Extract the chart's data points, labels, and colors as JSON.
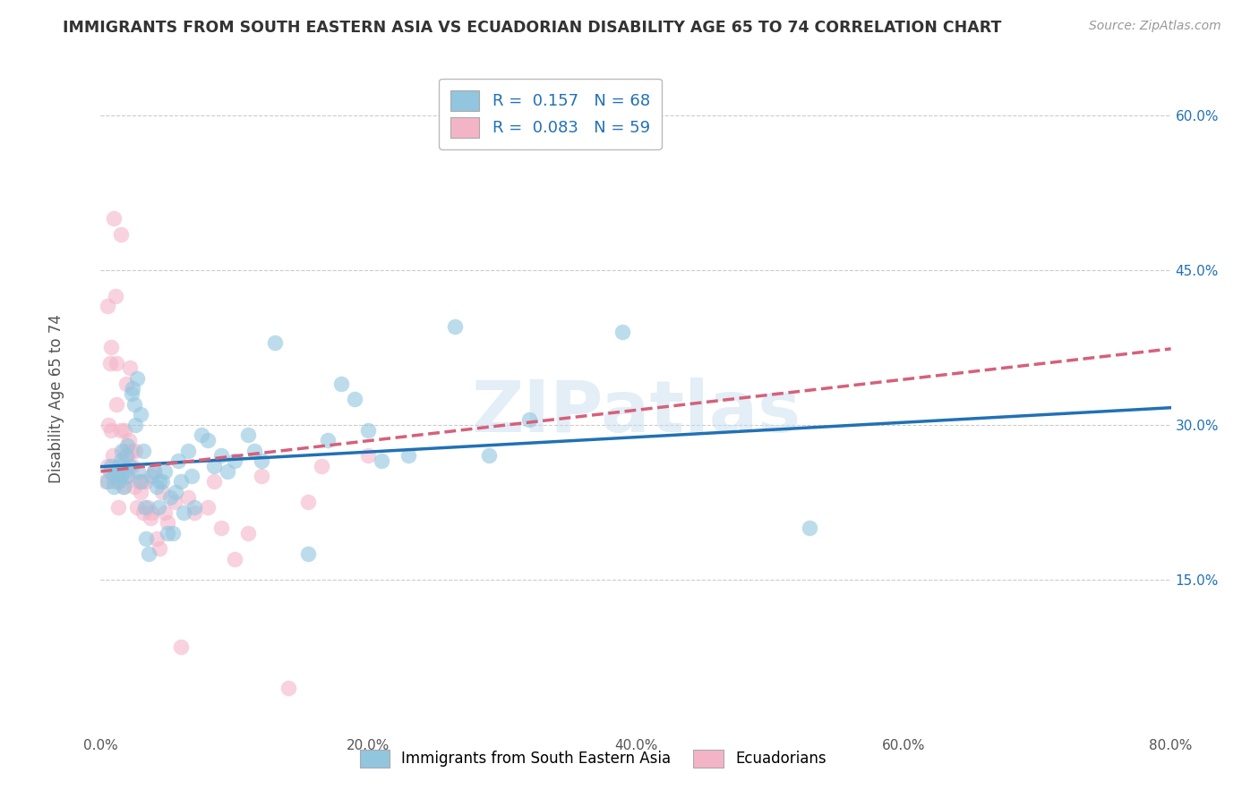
{
  "title": "IMMIGRANTS FROM SOUTH EASTERN ASIA VS ECUADORIAN DISABILITY AGE 65 TO 74 CORRELATION CHART",
  "source": "Source: ZipAtlas.com",
  "ylabel": "Disability Age 65 to 74",
  "watermark": "ZIPatlas",
  "xlim": [
    0.0,
    0.8
  ],
  "ylim": [
    0.0,
    0.65
  ],
  "xticks": [
    0.0,
    0.2,
    0.4,
    0.6,
    0.8
  ],
  "xtick_labels": [
    "0.0%",
    "20.0%",
    "40.0%",
    "60.0%",
    "80.0%"
  ],
  "yticks": [
    0.15,
    0.3,
    0.45,
    0.6
  ],
  "ytick_labels": [
    "15.0%",
    "30.0%",
    "45.0%",
    "60.0%"
  ],
  "R_blue": 0.157,
  "N_blue": 68,
  "R_pink": 0.083,
  "N_pink": 59,
  "blue_color": "#92c5de",
  "pink_color": "#f4b4c8",
  "blue_scatter": [
    [
      0.005,
      0.245
    ],
    [
      0.007,
      0.255
    ],
    [
      0.008,
      0.26
    ],
    [
      0.01,
      0.24
    ],
    [
      0.01,
      0.25
    ],
    [
      0.012,
      0.255
    ],
    [
      0.013,
      0.245
    ],
    [
      0.014,
      0.26
    ],
    [
      0.015,
      0.25
    ],
    [
      0.015,
      0.265
    ],
    [
      0.016,
      0.275
    ],
    [
      0.017,
      0.24
    ],
    [
      0.018,
      0.255
    ],
    [
      0.019,
      0.27
    ],
    [
      0.02,
      0.28
    ],
    [
      0.02,
      0.25
    ],
    [
      0.022,
      0.26
    ],
    [
      0.023,
      0.33
    ],
    [
      0.024,
      0.335
    ],
    [
      0.025,
      0.32
    ],
    [
      0.026,
      0.3
    ],
    [
      0.027,
      0.345
    ],
    [
      0.028,
      0.255
    ],
    [
      0.03,
      0.31
    ],
    [
      0.03,
      0.245
    ],
    [
      0.032,
      0.275
    ],
    [
      0.033,
      0.22
    ],
    [
      0.034,
      0.19
    ],
    [
      0.036,
      0.175
    ],
    [
      0.038,
      0.25
    ],
    [
      0.04,
      0.255
    ],
    [
      0.042,
      0.24
    ],
    [
      0.043,
      0.22
    ],
    [
      0.044,
      0.245
    ],
    [
      0.046,
      0.245
    ],
    [
      0.048,
      0.255
    ],
    [
      0.05,
      0.195
    ],
    [
      0.052,
      0.23
    ],
    [
      0.054,
      0.195
    ],
    [
      0.056,
      0.235
    ],
    [
      0.058,
      0.265
    ],
    [
      0.06,
      0.245
    ],
    [
      0.062,
      0.215
    ],
    [
      0.065,
      0.275
    ],
    [
      0.068,
      0.25
    ],
    [
      0.07,
      0.22
    ],
    [
      0.075,
      0.29
    ],
    [
      0.08,
      0.285
    ],
    [
      0.085,
      0.26
    ],
    [
      0.09,
      0.27
    ],
    [
      0.095,
      0.255
    ],
    [
      0.1,
      0.265
    ],
    [
      0.11,
      0.29
    ],
    [
      0.115,
      0.275
    ],
    [
      0.12,
      0.265
    ],
    [
      0.13,
      0.38
    ],
    [
      0.155,
      0.175
    ],
    [
      0.17,
      0.285
    ],
    [
      0.18,
      0.34
    ],
    [
      0.19,
      0.325
    ],
    [
      0.2,
      0.295
    ],
    [
      0.21,
      0.265
    ],
    [
      0.23,
      0.27
    ],
    [
      0.265,
      0.395
    ],
    [
      0.29,
      0.27
    ],
    [
      0.32,
      0.305
    ],
    [
      0.39,
      0.39
    ],
    [
      0.53,
      0.2
    ]
  ],
  "pink_scatter": [
    [
      0.004,
      0.245
    ],
    [
      0.005,
      0.26
    ],
    [
      0.005,
      0.415
    ],
    [
      0.006,
      0.3
    ],
    [
      0.007,
      0.36
    ],
    [
      0.008,
      0.295
    ],
    [
      0.008,
      0.375
    ],
    [
      0.009,
      0.27
    ],
    [
      0.01,
      0.5
    ],
    [
      0.01,
      0.245
    ],
    [
      0.011,
      0.425
    ],
    [
      0.012,
      0.32
    ],
    [
      0.012,
      0.36
    ],
    [
      0.013,
      0.22
    ],
    [
      0.014,
      0.245
    ],
    [
      0.015,
      0.295
    ],
    [
      0.015,
      0.485
    ],
    [
      0.016,
      0.26
    ],
    [
      0.017,
      0.24
    ],
    [
      0.018,
      0.295
    ],
    [
      0.018,
      0.275
    ],
    [
      0.019,
      0.34
    ],
    [
      0.02,
      0.27
    ],
    [
      0.02,
      0.25
    ],
    [
      0.021,
      0.285
    ],
    [
      0.022,
      0.355
    ],
    [
      0.023,
      0.275
    ],
    [
      0.024,
      0.26
    ],
    [
      0.025,
      0.24
    ],
    [
      0.026,
      0.275
    ],
    [
      0.027,
      0.22
    ],
    [
      0.028,
      0.245
    ],
    [
      0.03,
      0.235
    ],
    [
      0.031,
      0.245
    ],
    [
      0.032,
      0.215
    ],
    [
      0.034,
      0.245
    ],
    [
      0.035,
      0.22
    ],
    [
      0.037,
      0.21
    ],
    [
      0.038,
      0.215
    ],
    [
      0.04,
      0.255
    ],
    [
      0.042,
      0.19
    ],
    [
      0.044,
      0.18
    ],
    [
      0.046,
      0.235
    ],
    [
      0.048,
      0.215
    ],
    [
      0.05,
      0.205
    ],
    [
      0.055,
      0.225
    ],
    [
      0.06,
      0.085
    ],
    [
      0.065,
      0.23
    ],
    [
      0.07,
      0.215
    ],
    [
      0.08,
      0.22
    ],
    [
      0.085,
      0.245
    ],
    [
      0.09,
      0.2
    ],
    [
      0.1,
      0.17
    ],
    [
      0.11,
      0.195
    ],
    [
      0.12,
      0.25
    ],
    [
      0.14,
      0.045
    ],
    [
      0.155,
      0.225
    ],
    [
      0.165,
      0.26
    ],
    [
      0.2,
      0.27
    ]
  ],
  "blue_line_color": "#2171b5",
  "pink_line_color": "#d6607a",
  "background_color": "#ffffff",
  "grid_color": "#cccccc"
}
